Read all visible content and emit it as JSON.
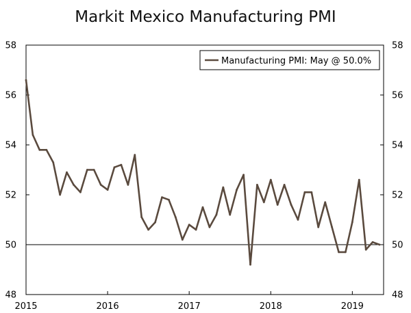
{
  "chart_data": {
    "type": "line",
    "title": "Markit Mexico Manufacturing PMI",
    "xlabel": "",
    "ylabel": "",
    "ylim": [
      48,
      58
    ],
    "xlim": [
      "2015-01",
      "2019-05"
    ],
    "y_ticks": [
      48,
      50,
      52,
      54,
      56,
      58
    ],
    "x_ticks": [
      "2015",
      "2016",
      "2017",
      "2018",
      "2019"
    ],
    "reference_line": 50,
    "grid": false,
    "legend_position": "top-right",
    "line_color": "#5a4a3e",
    "series": [
      {
        "name": "Manufacturing PMI: May @ 50.0%",
        "x": [
          "2015-01",
          "2015-02",
          "2015-03",
          "2015-04",
          "2015-05",
          "2015-06",
          "2015-07",
          "2015-08",
          "2015-09",
          "2015-10",
          "2015-11",
          "2015-12",
          "2016-01",
          "2016-02",
          "2016-03",
          "2016-04",
          "2016-05",
          "2016-06",
          "2016-07",
          "2016-08",
          "2016-09",
          "2016-10",
          "2016-11",
          "2016-12",
          "2017-01",
          "2017-02",
          "2017-03",
          "2017-04",
          "2017-05",
          "2017-06",
          "2017-07",
          "2017-08",
          "2017-09",
          "2017-10",
          "2017-11",
          "2017-12",
          "2018-01",
          "2018-02",
          "2018-03",
          "2018-04",
          "2018-05",
          "2018-06",
          "2018-07",
          "2018-08",
          "2018-09",
          "2018-10",
          "2018-11",
          "2018-12",
          "2019-01",
          "2019-02",
          "2019-03",
          "2019-04",
          "2019-05"
        ],
        "values": [
          56.6,
          54.4,
          53.8,
          53.8,
          53.3,
          52.0,
          52.9,
          52.4,
          52.1,
          53.0,
          53.0,
          52.4,
          52.2,
          53.1,
          53.2,
          52.4,
          53.6,
          51.1,
          50.6,
          50.9,
          51.9,
          51.8,
          51.1,
          50.2,
          50.8,
          50.6,
          51.5,
          50.7,
          51.2,
          52.3,
          51.2,
          52.2,
          52.8,
          49.2,
          52.4,
          51.7,
          52.6,
          51.6,
          52.4,
          51.6,
          51.0,
          52.1,
          52.1,
          50.7,
          51.7,
          50.7,
          49.7,
          49.7,
          50.9,
          52.6,
          49.8,
          50.1,
          50.0
        ]
      }
    ]
  }
}
